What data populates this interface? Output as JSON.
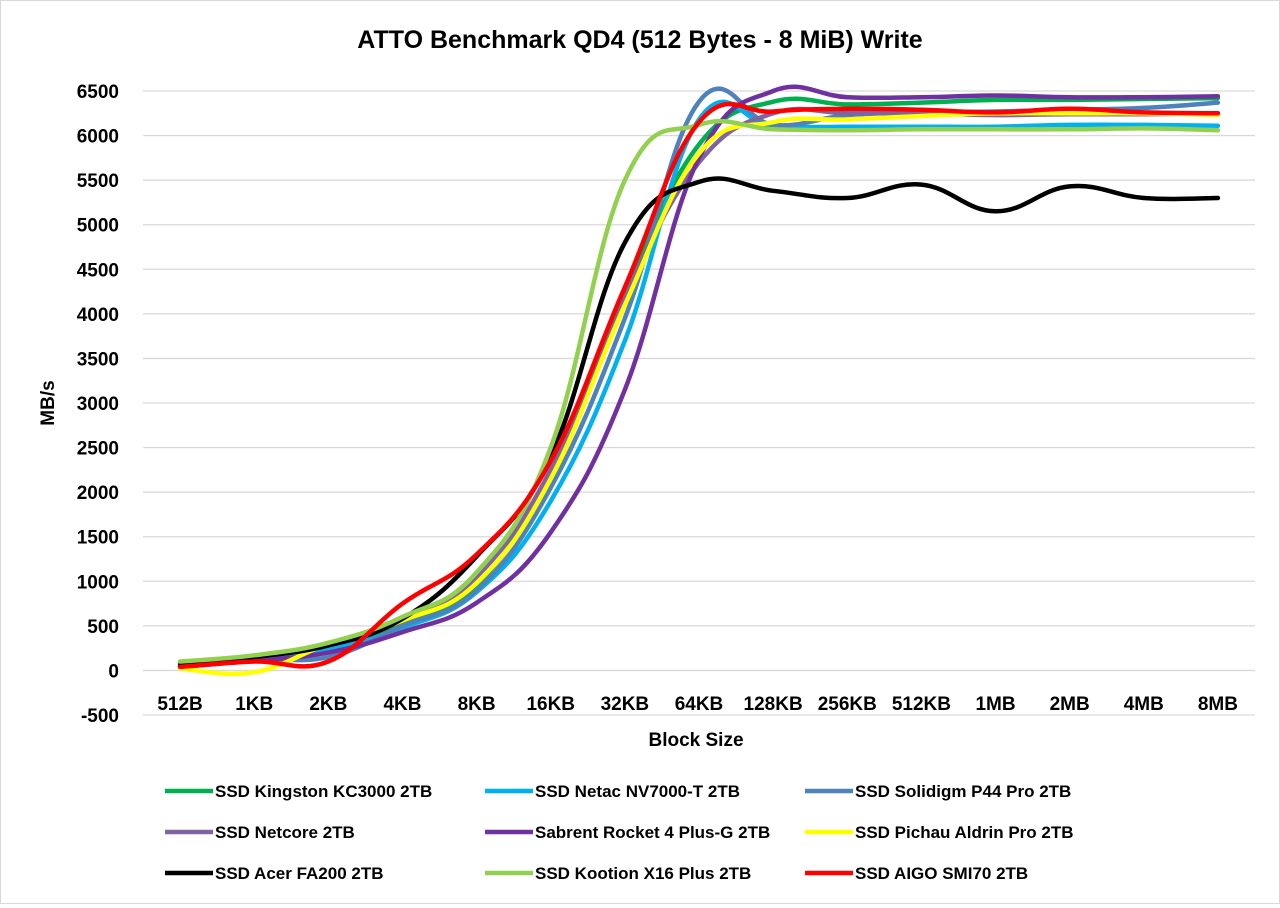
{
  "chart_data": {
    "type": "line",
    "title": "ATTO Benchmark QD4 (512 Bytes - 8 MiB) Write",
    "xlabel": "Block Size",
    "ylabel": "MB/s",
    "ylim": [
      -500,
      6500
    ],
    "yticks": [
      "6500",
      "6000",
      "5500",
      "5000",
      "4500",
      "4000",
      "3500",
      "3000",
      "2500",
      "2000",
      "1500",
      "1000",
      "500",
      "0",
      "-500"
    ],
    "grid": "horizontal",
    "legend_position": "bottom",
    "categories": [
      "512B",
      "1KB",
      "2KB",
      "4KB",
      "8KB",
      "16KB",
      "32KB",
      "64KB",
      "128KB",
      "256KB",
      "512KB",
      "1MB",
      "2MB",
      "4MB",
      "8MB"
    ],
    "series": [
      {
        "name": "SSD Kingston KC3000 2TB",
        "color": "#00b050",
        "values": [
          80,
          150,
          260,
          520,
          960,
          2200,
          4250,
          5900,
          6380,
          6350,
          6370,
          6400,
          6400,
          6410,
          6420
        ]
      },
      {
        "name": "SSD Netac NV7000-T 2TB",
        "color": "#00b0f0",
        "values": [
          70,
          140,
          240,
          480,
          880,
          1900,
          3700,
          6180,
          6100,
          6100,
          6100,
          6100,
          6120,
          6120,
          6110
        ]
      },
      {
        "name": "SSD Solidigm P44 Pro 2TB",
        "color": "#4f81bd",
        "values": [
          50,
          130,
          150,
          500,
          900,
          2050,
          3950,
          6380,
          6120,
          6230,
          6260,
          6270,
          6290,
          6310,
          6370
        ]
      },
      {
        "name": "SSD Netcore 2TB",
        "color": "#8064a2",
        "values": [
          90,
          160,
          280,
          560,
          1050,
          2250,
          4200,
          5700,
          6250,
          6250,
          6250,
          6230,
          6240,
          6240,
          6250
        ]
      },
      {
        "name": "Sabrent Rocket 4 Plus-G 2TB",
        "color": "#7030a0",
        "values": [
          40,
          110,
          200,
          430,
          760,
          1550,
          3150,
          5750,
          6500,
          6430,
          6430,
          6450,
          6430,
          6430,
          6440
        ]
      },
      {
        "name": "SSD Pichau Aldrin Pro 2TB",
        "color": "#ffff00",
        "values": [
          20,
          -20,
          300,
          560,
          980,
          2150,
          4100,
          5800,
          6150,
          6180,
          6220,
          6250,
          6250,
          6250,
          6230
        ]
      },
      {
        "name": "SSD Acer FA200 2TB",
        "color": "#000000",
        "values": [
          60,
          150,
          280,
          580,
          1280,
          2400,
          4800,
          5480,
          5380,
          5300,
          5450,
          5150,
          5430,
          5300,
          5300
        ]
      },
      {
        "name": "SSD Kootion X16 Plus 2TB",
        "color": "#92d050",
        "values": [
          100,
          170,
          310,
          600,
          1100,
          2500,
          5500,
          6120,
          6070,
          6060,
          6070,
          6070,
          6070,
          6080,
          6060
        ]
      },
      {
        "name": "SSD AIGO SMI70 2TB",
        "color": "#ff0000",
        "values": [
          40,
          100,
          100,
          750,
          1300,
          2350,
          4300,
          6150,
          6270,
          6300,
          6290,
          6260,
          6300,
          6260,
          6250
        ]
      }
    ]
  }
}
